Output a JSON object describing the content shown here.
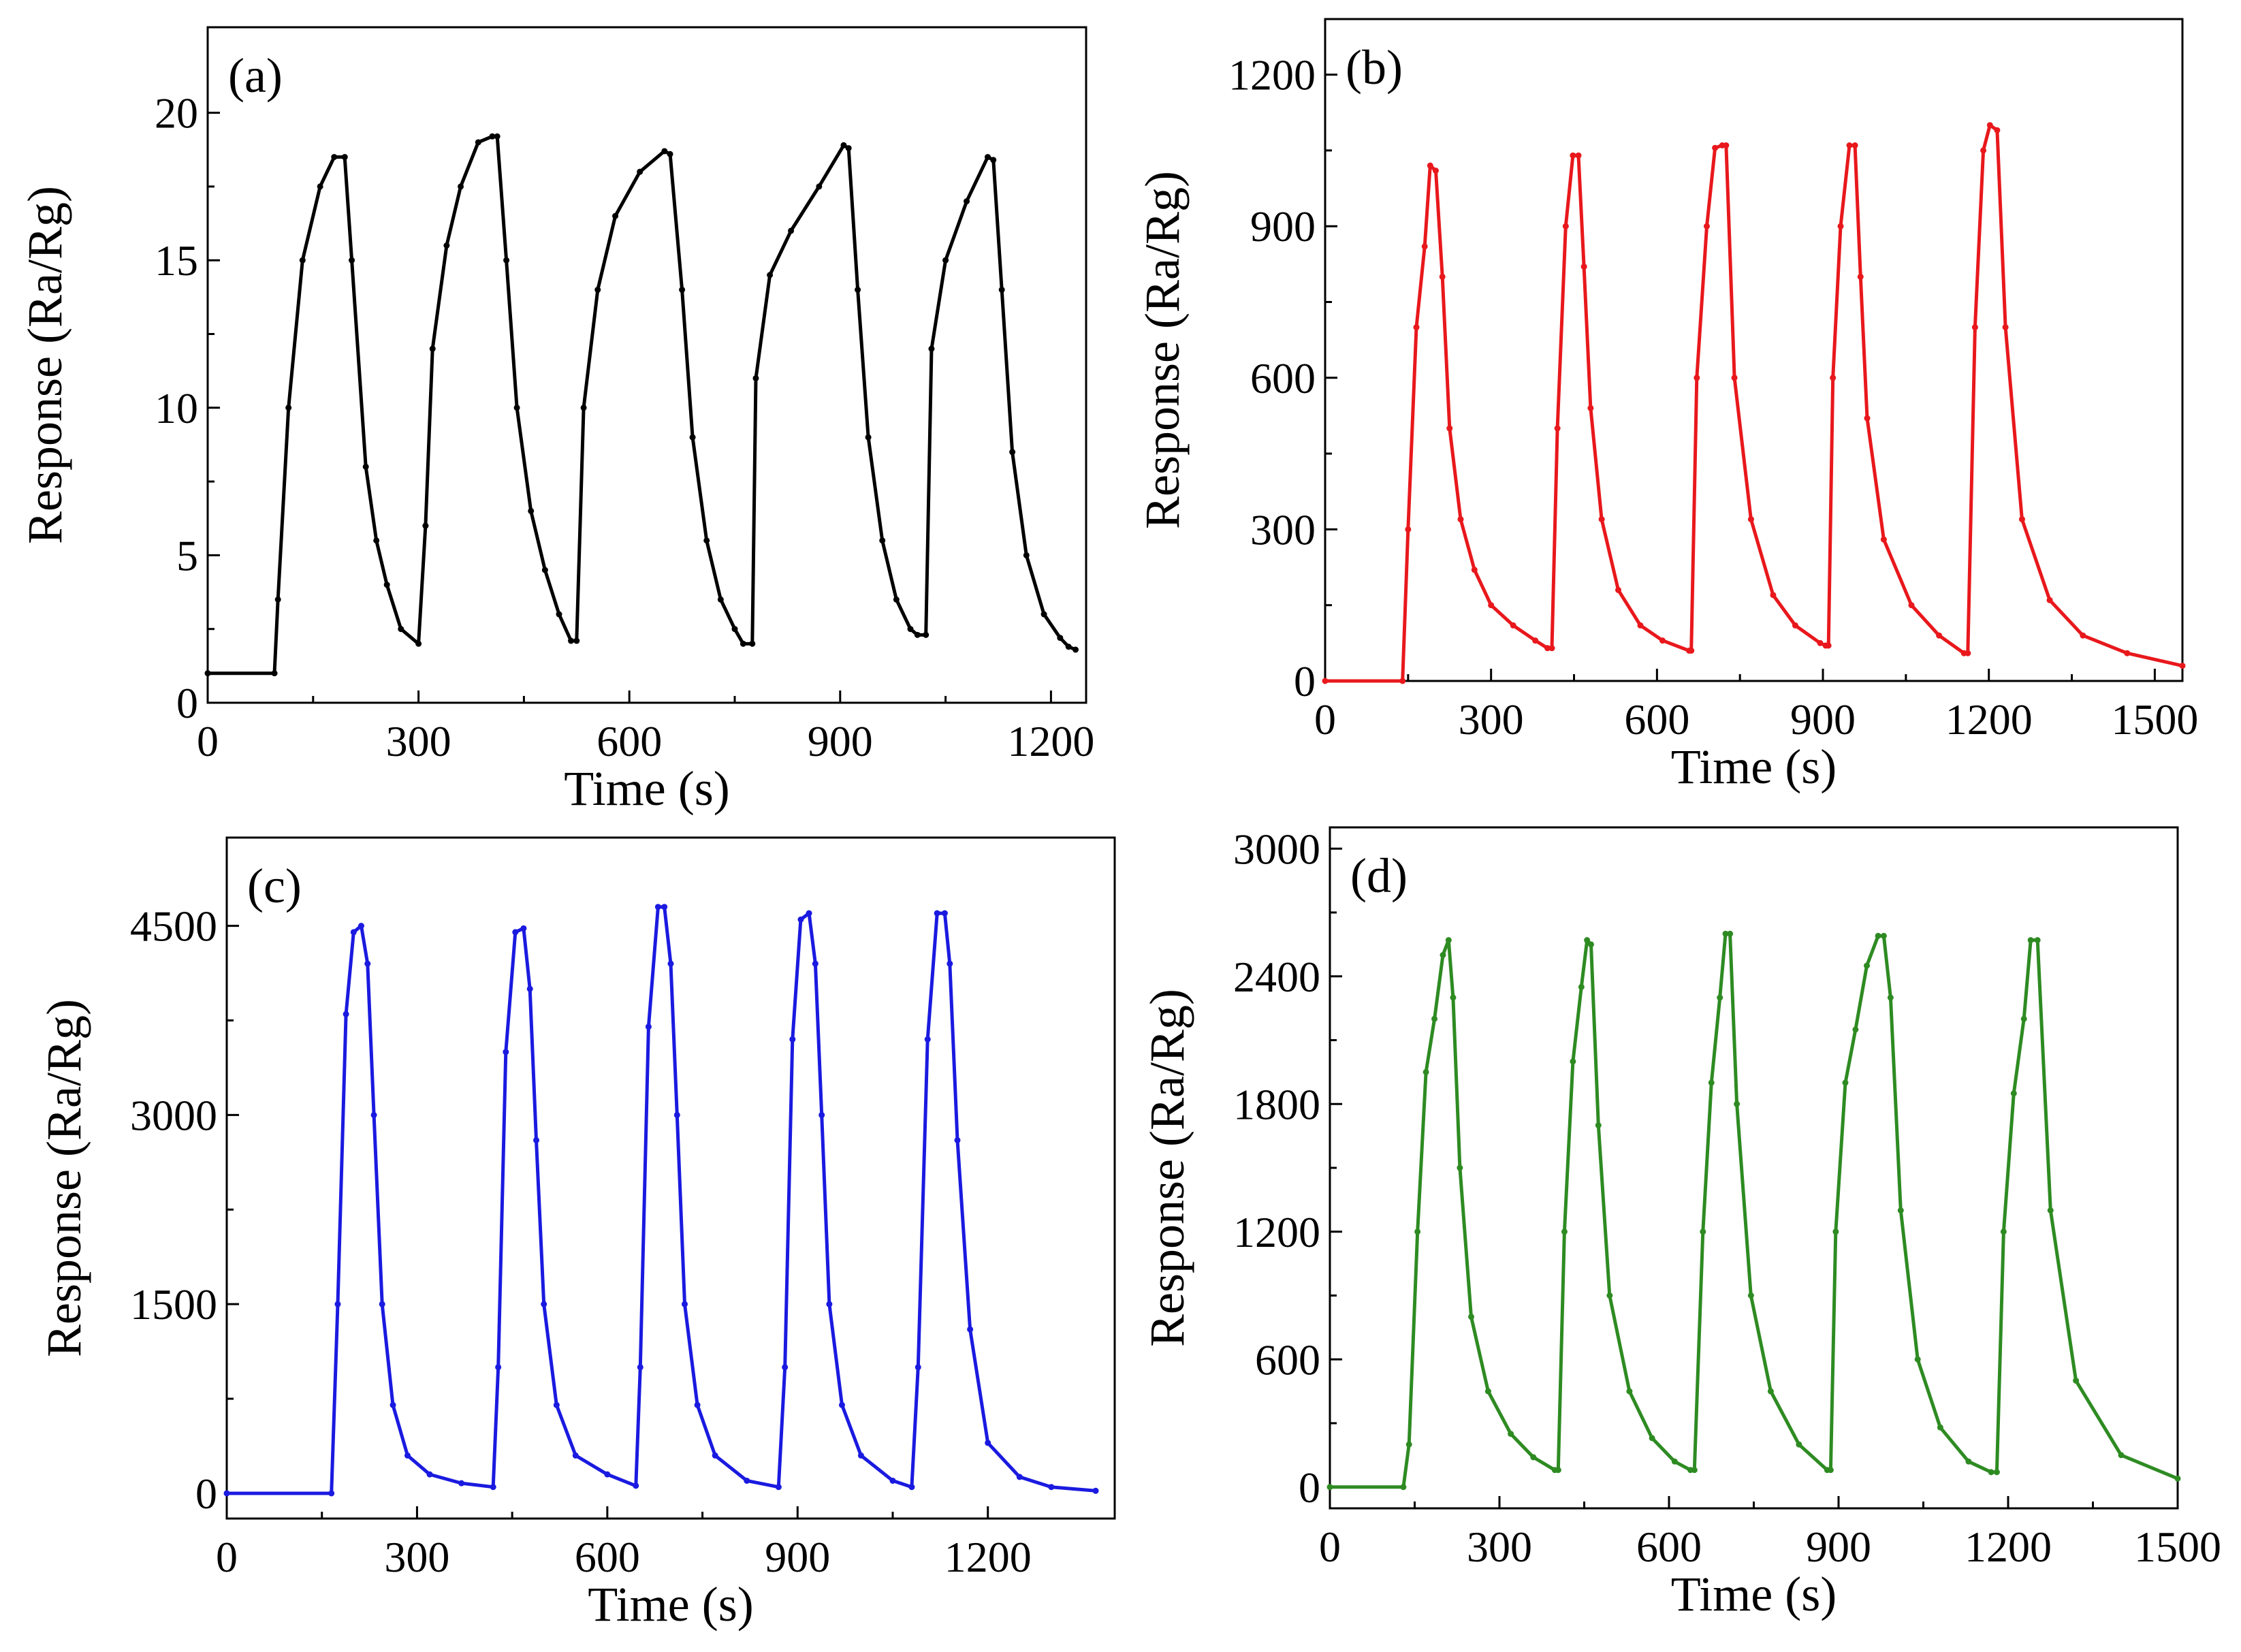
{
  "chart_data": [
    {
      "type": "line",
      "panel_label": "(a)",
      "color": "#000000",
      "xlabel": "Time (s)",
      "ylabel": "Response (Ra/Rg)",
      "xlim": [
        0,
        1250
      ],
      "ylim": [
        0,
        22.9
      ],
      "xticks": [
        0,
        300,
        600,
        900,
        1200
      ],
      "yticks": [
        0,
        5,
        10,
        15,
        20
      ],
      "xtick_labels": [
        "0",
        "300",
        "600",
        "900",
        "1200"
      ],
      "ytick_labels": [
        "0",
        "5",
        "10",
        "15",
        "20"
      ],
      "series": [
        {
          "name": "(a)",
          "x": [
            0,
            95,
            100,
            115,
            135,
            160,
            180,
            195,
            205,
            225,
            240,
            255,
            275,
            300,
            310,
            320,
            340,
            360,
            385,
            405,
            412,
            425,
            440,
            460,
            480,
            500,
            517,
            525,
            535,
            555,
            580,
            615,
            650,
            658,
            675,
            690,
            710,
            730,
            750,
            762,
            775,
            780,
            800,
            830,
            870,
            905,
            912,
            925,
            940,
            960,
            980,
            1000,
            1010,
            1022,
            1030,
            1050,
            1080,
            1110,
            1118,
            1130,
            1145,
            1165,
            1190,
            1213,
            1225,
            1235
          ],
          "y": [
            1.0,
            1.0,
            3.5,
            10.0,
            15.0,
            17.5,
            18.5,
            18.5,
            15.0,
            8.0,
            5.5,
            4.0,
            2.5,
            2.0,
            6.0,
            12.0,
            15.5,
            17.5,
            19.0,
            19.2,
            19.2,
            15.0,
            10.0,
            6.5,
            4.5,
            3.0,
            2.1,
            2.1,
            10.0,
            14.0,
            16.5,
            18.0,
            18.7,
            18.6,
            14.0,
            9.0,
            5.5,
            3.5,
            2.5,
            2.0,
            2.0,
            11.0,
            14.5,
            16.0,
            17.5,
            18.9,
            18.8,
            14.0,
            9.0,
            5.5,
            3.5,
            2.5,
            2.3,
            2.3,
            12.0,
            15.0,
            17.0,
            18.5,
            18.4,
            14.0,
            8.5,
            5.0,
            3.0,
            2.2,
            1.9,
            1.8
          ]
        }
      ]
    },
    {
      "type": "line",
      "panel_label": "(b)",
      "color": "#e8181c",
      "xlabel": "Time (s)",
      "ylabel": "Response (Ra/Rg)",
      "xlim": [
        0,
        1550
      ],
      "ylim": [
        0,
        1310
      ],
      "xticks": [
        0,
        300,
        600,
        900,
        1200,
        1500
      ],
      "yticks": [
        0,
        300,
        600,
        900,
        1200
      ],
      "xtick_labels": [
        "0",
        "300",
        "600",
        "900",
        "1200",
        "1500"
      ],
      "ytick_labels": [
        "0",
        "300",
        "600",
        "900",
        "1200"
      ],
      "series": [
        {
          "name": "(b)",
          "x": [
            0,
            140,
            150,
            165,
            180,
            190,
            200,
            212,
            225,
            245,
            270,
            300,
            340,
            380,
            402,
            410,
            420,
            435,
            448,
            458,
            468,
            480,
            500,
            530,
            570,
            610,
            658,
            662,
            672,
            690,
            705,
            718,
            725,
            740,
            770,
            810,
            850,
            895,
            905,
            910,
            918,
            932,
            948,
            958,
            968,
            980,
            1010,
            1060,
            1110,
            1155,
            1162,
            1175,
            1190,
            1202,
            1215,
            1230,
            1260,
            1310,
            1370,
            1450,
            1550
          ],
          "y": [
            0,
            0,
            300,
            700,
            860,
            1020,
            1010,
            800,
            500,
            320,
            220,
            150,
            110,
            80,
            65,
            65,
            500,
            900,
            1040,
            1040,
            820,
            540,
            320,
            180,
            110,
            80,
            60,
            60,
            600,
            900,
            1055,
            1060,
            1060,
            600,
            320,
            170,
            110,
            75,
            70,
            70,
            600,
            900,
            1060,
            1060,
            800,
            520,
            280,
            150,
            90,
            55,
            55,
            700,
            1050,
            1100,
            1090,
            700,
            320,
            160,
            90,
            55,
            30
          ]
        }
      ]
    },
    {
      "type": "line",
      "panel_label": "(c)",
      "color": "#1a1ae0",
      "xlabel": "Time (s)",
      "ylabel": "Response (Ra/Rg)",
      "xlim": [
        0,
        1400
      ],
      "ylim": [
        -200,
        5200
      ],
      "xticks": [
        0,
        300,
        600,
        900,
        1200
      ],
      "yticks": [
        0,
        1500,
        3000,
        4500
      ],
      "xtick_labels": [
        "0",
        "300",
        "600",
        "900",
        "1200"
      ],
      "ytick_labels": [
        "0",
        "1500",
        "3000",
        "4500"
      ],
      "series": [
        {
          "name": "(c)",
          "x": [
            0,
            165,
            175,
            188,
            200,
            212,
            222,
            232,
            245,
            262,
            285,
            320,
            370,
            420,
            428,
            440,
            455,
            468,
            478,
            488,
            500,
            520,
            550,
            600,
            645,
            652,
            665,
            680,
            690,
            700,
            710,
            722,
            742,
            770,
            820,
            870,
            880,
            892,
            905,
            918,
            928,
            938,
            950,
            970,
            1000,
            1050,
            1080,
            1090,
            1105,
            1120,
            1132,
            1140,
            1152,
            1172,
            1200,
            1250,
            1300,
            1370
          ],
          "y": [
            0,
            0,
            1500,
            3800,
            4450,
            4500,
            4200,
            3000,
            1500,
            700,
            300,
            150,
            80,
            50,
            1000,
            3500,
            4450,
            4480,
            4000,
            2800,
            1500,
            700,
            300,
            150,
            60,
            1000,
            3700,
            4650,
            4650,
            4200,
            3000,
            1500,
            700,
            300,
            100,
            50,
            1000,
            3600,
            4550,
            4600,
            4200,
            3000,
            1500,
            700,
            300,
            100,
            50,
            1000,
            3600,
            4600,
            4600,
            4200,
            2800,
            1300,
            400,
            130,
            50,
            20
          ]
        }
      ]
    },
    {
      "type": "line",
      "panel_label": "(d)",
      "color": "#2e8b22",
      "xlabel": "Time (s)",
      "ylabel": "Response (Ra/Rg)",
      "xlim": [
        0,
        1500
      ],
      "ylim": [
        -100,
        3100
      ],
      "xticks": [
        0,
        300,
        600,
        900,
        1200,
        1500
      ],
      "yticks": [
        0,
        600,
        1200,
        1800,
        2400,
        3000
      ],
      "xtick_labels": [
        "0",
        "300",
        "600",
        "900",
        "1200",
        "1500"
      ],
      "ytick_labels": [
        "0",
        "600",
        "1200",
        "1800",
        "2400",
        "3000"
      ],
      "series": [
        {
          "name": "(d)",
          "x": [
            0,
            130,
            140,
            155,
            170,
            185,
            200,
            210,
            218,
            230,
            250,
            280,
            320,
            360,
            398,
            404,
            415,
            430,
            445,
            455,
            462,
            475,
            495,
            530,
            570,
            610,
            638,
            645,
            660,
            675,
            690,
            700,
            708,
            720,
            745,
            780,
            830,
            880,
            886,
            895,
            912,
            930,
            950,
            970,
            980,
            992,
            1010,
            1040,
            1080,
            1130,
            1170,
            1180,
            1192,
            1210,
            1228,
            1240,
            1252,
            1275,
            1320,
            1400,
            1500
          ],
          "y": [
            0,
            0,
            200,
            1200,
            1950,
            2200,
            2500,
            2570,
            2300,
            1500,
            800,
            450,
            250,
            140,
            80,
            80,
            1200,
            2000,
            2350,
            2570,
            2550,
            1700,
            900,
            450,
            230,
            120,
            80,
            80,
            1200,
            1900,
            2300,
            2600,
            2600,
            1800,
            900,
            450,
            200,
            80,
            80,
            1200,
            1900,
            2150,
            2450,
            2590,
            2590,
            2300,
            1300,
            600,
            280,
            120,
            70,
            70,
            1200,
            1850,
            2200,
            2570,
            2570,
            1300,
            500,
            150,
            40
          ]
        }
      ]
    }
  ]
}
